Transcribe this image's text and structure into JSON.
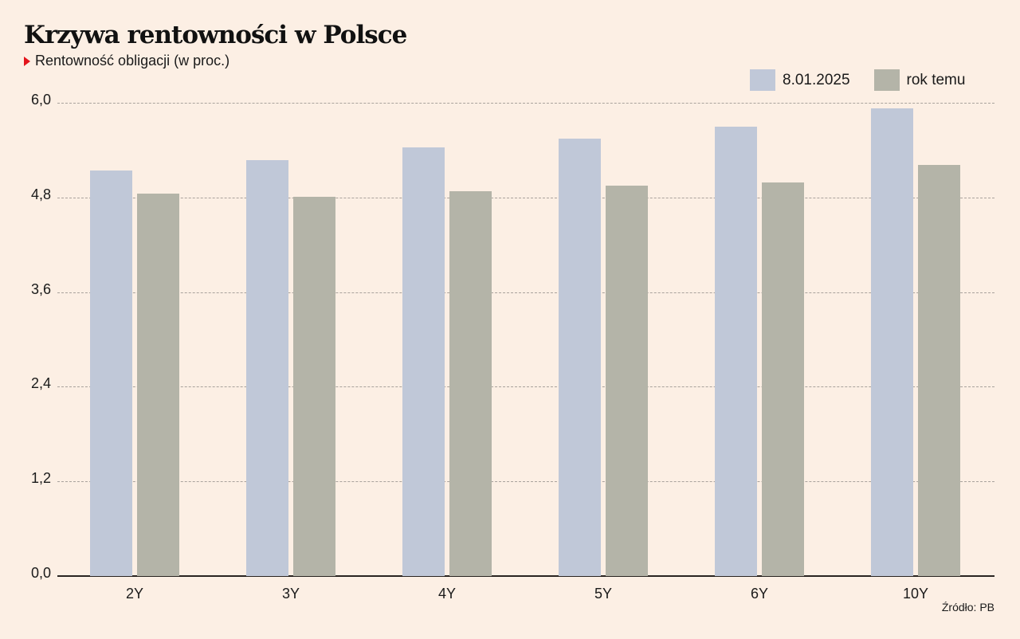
{
  "header": {
    "title": "Krzywa rentowności w Polsce",
    "subtitle": "Rentowność obligacji (w proc.)"
  },
  "legend": [
    {
      "label": "8.01.2025",
      "color": "#c0c8d8"
    },
    {
      "label": "rok temu",
      "color": "#b4b4a8"
    }
  ],
  "y_ticks": [
    "6,0",
    "4,8",
    "3,6",
    "2,4",
    "1,2",
    "0,0"
  ],
  "x_labels": [
    "2Y",
    "3Y",
    "4Y",
    "5Y",
    "6Y",
    "10Y"
  ],
  "source": "Źródło: PB",
  "colors": {
    "background": "#fcefe4",
    "series_current": "#c0c8d8",
    "series_prev": "#b4b4a8",
    "accent": "#e3141b"
  },
  "chart_data": {
    "type": "bar",
    "title": "Krzywa rentowności w Polsce",
    "subtitle": "Rentowność obligacji (w proc.)",
    "xlabel": "",
    "ylabel": "",
    "categories": [
      "2Y",
      "3Y",
      "4Y",
      "5Y",
      "6Y",
      "10Y"
    ],
    "series": [
      {
        "name": "8.01.2025",
        "values": [
          5.14,
          5.27,
          5.43,
          5.55,
          5.7,
          5.93
        ]
      },
      {
        "name": "rok temu",
        "values": [
          4.85,
          4.81,
          4.88,
          4.95,
          4.99,
          5.21
        ]
      }
    ],
    "ylim": [
      0,
      6.0
    ],
    "yticks": [
      0.0,
      1.2,
      2.4,
      3.6,
      4.8,
      6.0
    ],
    "grid": true,
    "legend_position": "top-right",
    "source": "Źródło: PB"
  }
}
